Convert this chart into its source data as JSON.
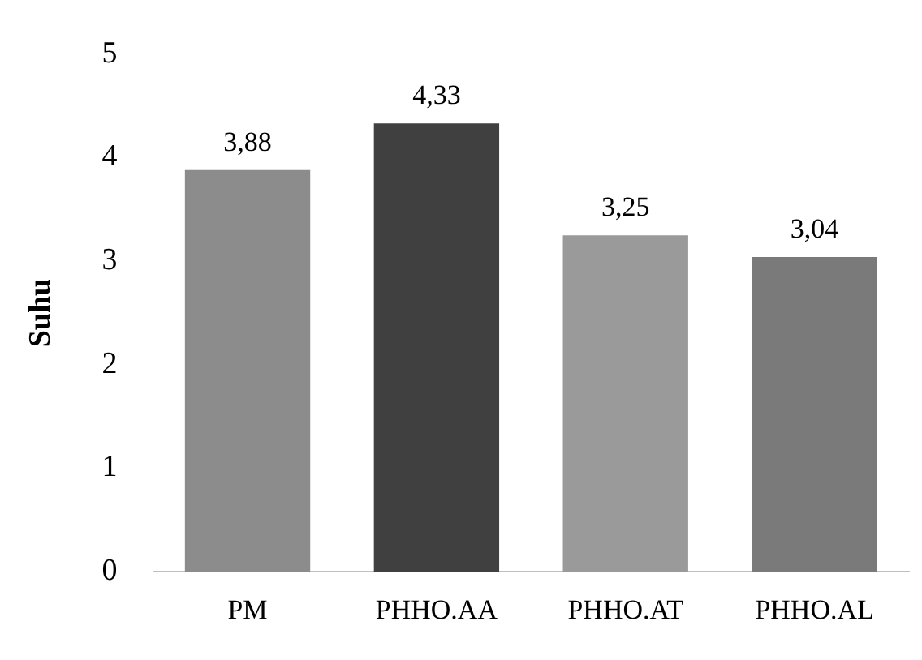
{
  "chart_data": {
    "type": "bar",
    "ylabel": "Suhu",
    "categories": [
      "PM",
      "PHHO.AA",
      "PHHO.AT",
      "PHHO.AL"
    ],
    "values": [
      3.88,
      4.33,
      3.25,
      3.04
    ],
    "colors": [
      "#8c8c8c",
      "#404040",
      "#9a9a9a",
      "#7a7a7a"
    ],
    "value_labels": [
      "3,88",
      "4,33",
      "3,25",
      "3,04"
    ],
    "ylim": [
      0,
      5
    ],
    "yticks": [
      0,
      1,
      2,
      3,
      4,
      5
    ],
    "grid": false,
    "legend": false
  }
}
